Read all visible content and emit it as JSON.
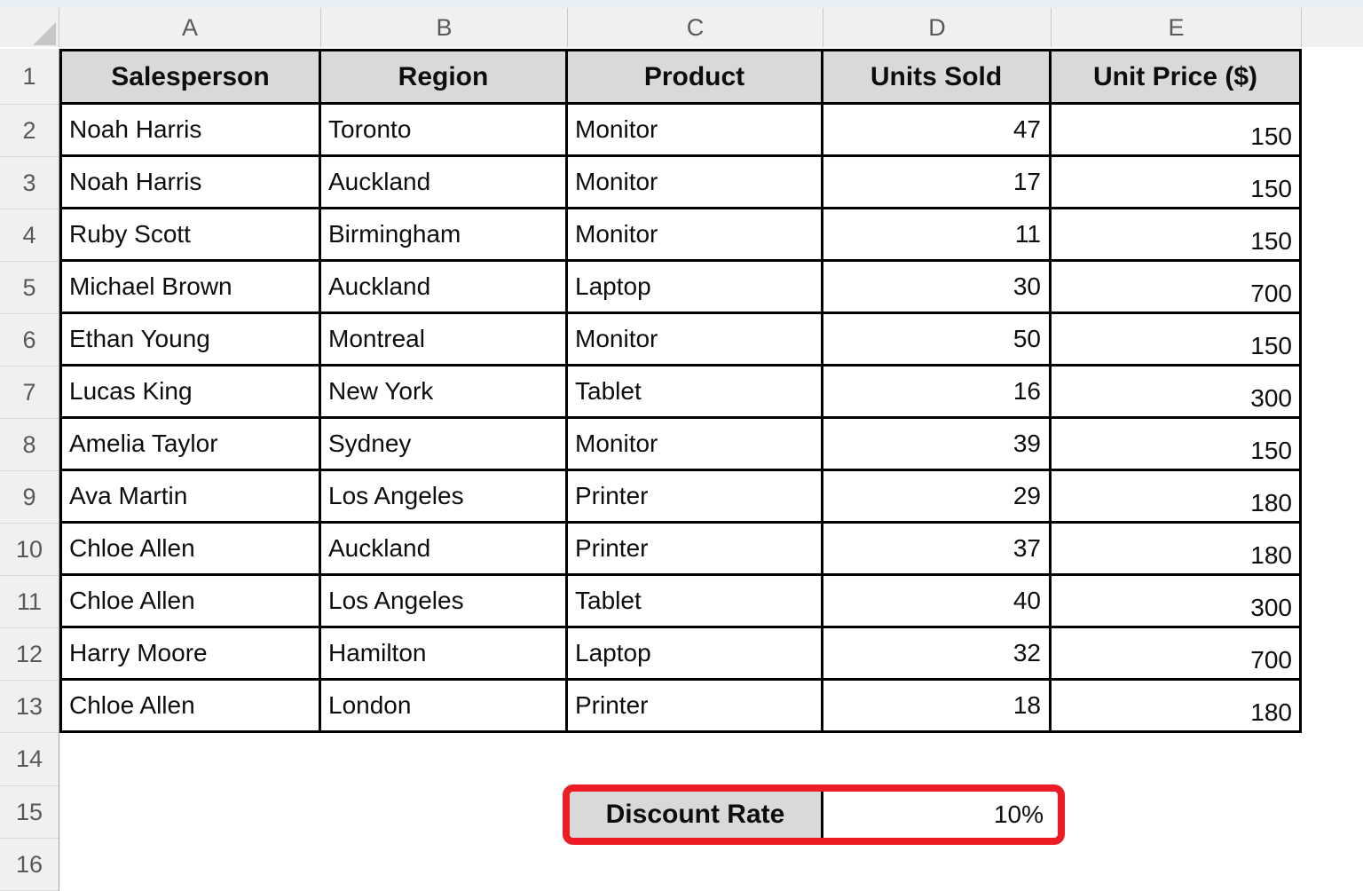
{
  "sheet": {
    "column_letters": [
      "A",
      "B",
      "C",
      "D",
      "E",
      ""
    ],
    "row_numbers": [
      "1",
      "2",
      "3",
      "4",
      "5",
      "6",
      "7",
      "8",
      "9",
      "10",
      "11",
      "12",
      "13",
      "14",
      "15",
      "16"
    ]
  },
  "table": {
    "headers": [
      "Salesperson",
      "Region",
      "Product",
      "Units Sold",
      "Unit Price ($)"
    ],
    "rows": [
      [
        "Noah Harris",
        "Toronto",
        "Monitor",
        "47",
        "150"
      ],
      [
        "Noah Harris",
        "Auckland",
        "Monitor",
        "17",
        "150"
      ],
      [
        "Ruby Scott",
        "Birmingham",
        "Monitor",
        "11",
        "150"
      ],
      [
        "Michael Brown",
        "Auckland",
        "Laptop",
        "30",
        "700"
      ],
      [
        "Ethan Young",
        "Montreal",
        "Monitor",
        "50",
        "150"
      ],
      [
        "Lucas King",
        "New York",
        "Tablet",
        "16",
        "300"
      ],
      [
        "Amelia Taylor",
        "Sydney",
        "Monitor",
        "39",
        "150"
      ],
      [
        "Ava Martin",
        "Los Angeles",
        "Printer",
        "29",
        "180"
      ],
      [
        "Chloe Allen",
        "Auckland",
        "Printer",
        "37",
        "180"
      ],
      [
        "Chloe Allen",
        "Los Angeles",
        "Tablet",
        "40",
        "300"
      ],
      [
        "Harry Moore",
        "Hamilton",
        "Laptop",
        "32",
        "700"
      ],
      [
        "Chloe Allen",
        "London",
        "Printer",
        "18",
        "180"
      ]
    ]
  },
  "discount": {
    "label": "Discount Rate",
    "value": "10%"
  },
  "colors": {
    "highlight_border": "#ed1c24",
    "header_fill": "#d9d9d9",
    "frame_fill": "#f0f0f0",
    "grid_border": "#000000"
  }
}
